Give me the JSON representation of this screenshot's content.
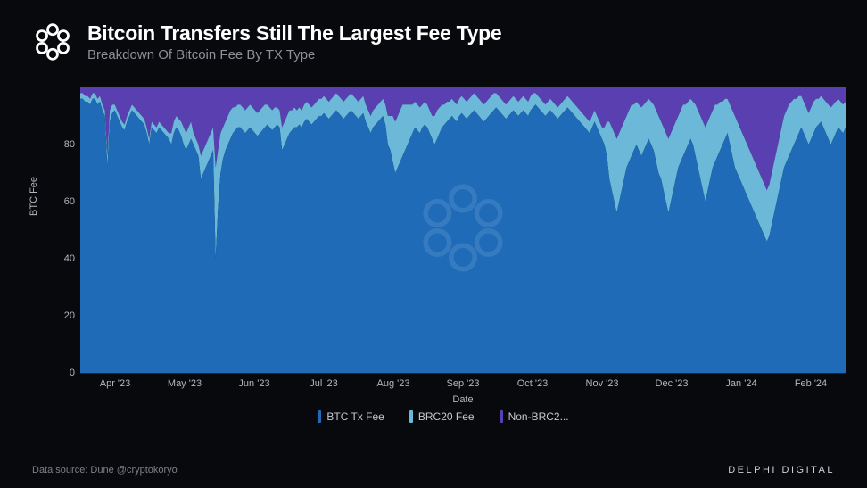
{
  "header": {
    "title": "Bitcoin Transfers Still The Largest Fee Type",
    "subtitle": "Breakdown Of Bitcoin Fee By TX Type"
  },
  "footer": {
    "source": "Data source: Dune @cryptokoryo",
    "brand": "DELPHI DIGITAL"
  },
  "chart": {
    "type": "stacked-area",
    "background_color": "#08090c",
    "grid_color": "#222328",
    "axis_text_color": "#b5b7bf",
    "y_axis": {
      "label": "BTC Fee",
      "min": 0,
      "max": 100,
      "ticks": [
        0,
        20,
        40,
        60,
        80
      ]
    },
    "x_axis": {
      "label": "Date",
      "ticks": [
        "Apr '23",
        "May '23",
        "Jun '23",
        "Jul '23",
        "Aug '23",
        "Sep '23",
        "Oct '23",
        "Nov '23",
        "Dec '23",
        "Jan '24",
        "Feb '24"
      ]
    },
    "series": [
      {
        "name": "BTC Tx Fee",
        "color": "#1f6bb8"
      },
      {
        "name": "BRC20 Fee",
        "color": "#6bb8d9"
      },
      {
        "name": "Non-BRC2...",
        "color": "#5a3fb0"
      }
    ],
    "legend": {
      "items": [
        {
          "label": "BTC Tx Fee",
          "color": "#1f6bb8"
        },
        {
          "label": "BRC20 Fee",
          "color": "#6bb8d9"
        },
        {
          "label": "Non-BRC2...",
          "color": "#5a3fb0"
        }
      ]
    },
    "data": {
      "note": "btc values are the BTC Tx Fee share (%); brc20 values are cumulative top of BTC+BRC20 (%); total is 100 for all points. Non-BRC20 fills 100 down to brc20.",
      "btc": [
        96,
        96,
        95,
        95,
        94,
        96,
        96,
        94,
        95,
        92,
        90,
        72,
        88,
        91,
        92,
        90,
        88,
        86,
        85,
        88,
        90,
        92,
        91,
        90,
        89,
        88,
        87,
        84,
        80,
        86,
        85,
        84,
        86,
        85,
        84,
        83,
        82,
        80,
        84,
        86,
        85,
        83,
        80,
        78,
        80,
        82,
        80,
        78,
        76,
        68,
        70,
        72,
        74,
        76,
        78,
        40,
        58,
        70,
        75,
        78,
        80,
        82,
        84,
        85,
        86,
        86,
        85,
        84,
        85,
        86,
        85,
        84,
        83,
        84,
        85,
        86,
        87,
        86,
        85,
        86,
        87,
        86,
        78,
        80,
        82,
        84,
        85,
        86,
        86,
        87,
        86,
        88,
        89,
        88,
        87,
        88,
        89,
        90,
        90,
        91,
        90,
        89,
        90,
        91,
        92,
        91,
        90,
        89,
        90,
        91,
        92,
        91,
        90,
        89,
        90,
        91,
        88,
        86,
        84,
        86,
        87,
        88,
        89,
        90,
        87,
        80,
        78,
        74,
        70,
        72,
        74,
        76,
        78,
        80,
        82,
        84,
        86,
        85,
        84,
        86,
        87,
        86,
        84,
        82,
        80,
        82,
        84,
        86,
        87,
        88,
        89,
        90,
        89,
        88,
        90,
        91,
        90,
        89,
        90,
        91,
        92,
        91,
        90,
        89,
        88,
        89,
        90,
        91,
        92,
        93,
        92,
        91,
        90,
        89,
        90,
        91,
        92,
        91,
        90,
        91,
        92,
        91,
        90,
        92,
        93,
        94,
        93,
        92,
        91,
        90,
        91,
        92,
        91,
        90,
        89,
        90,
        91,
        92,
        93,
        92,
        91,
        90,
        89,
        88,
        87,
        86,
        85,
        84,
        86,
        88,
        86,
        84,
        82,
        80,
        76,
        68,
        64,
        60,
        56,
        60,
        64,
        68,
        72,
        74,
        76,
        78,
        80,
        78,
        76,
        78,
        80,
        82,
        80,
        78,
        74,
        70,
        68,
        64,
        60,
        56,
        60,
        64,
        68,
        72,
        74,
        76,
        78,
        80,
        82,
        80,
        76,
        72,
        68,
        64,
        60,
        64,
        68,
        72,
        74,
        76,
        78,
        80,
        82,
        84,
        80,
        76,
        72,
        70,
        68,
        66,
        64,
        62,
        60,
        58,
        56,
        54,
        52,
        50,
        48,
        46,
        48,
        52,
        56,
        60,
        64,
        68,
        72,
        74,
        76,
        78,
        80,
        82,
        84,
        86,
        84,
        82,
        80,
        82,
        84,
        86,
        87,
        88,
        86,
        84,
        82,
        80,
        82,
        84,
        86,
        85,
        84,
        86
      ],
      "brc20": [
        98,
        98,
        97,
        97,
        96,
        98,
        98,
        96,
        97,
        94,
        92,
        76,
        92,
        94,
        94,
        92,
        90,
        88,
        87,
        90,
        92,
        94,
        93,
        92,
        91,
        90,
        89,
        86,
        82,
        88,
        87,
        86,
        88,
        87,
        86,
        85,
        84,
        84,
        88,
        90,
        89,
        88,
        86,
        84,
        86,
        88,
        84,
        82,
        80,
        76,
        78,
        80,
        82,
        84,
        86,
        72,
        78,
        84,
        86,
        88,
        90,
        92,
        93,
        93,
        94,
        94,
        93,
        92,
        93,
        94,
        93,
        92,
        91,
        92,
        93,
        94,
        94,
        93,
        92,
        93,
        93,
        92,
        86,
        88,
        90,
        92,
        92,
        93,
        92,
        93,
        92,
        94,
        95,
        94,
        93,
        94,
        95,
        96,
        96,
        97,
        96,
        95,
        96,
        97,
        98,
        97,
        96,
        95,
        96,
        97,
        98,
        97,
        96,
        95,
        96,
        97,
        94,
        92,
        90,
        92,
        93,
        94,
        95,
        96,
        94,
        90,
        90,
        90,
        88,
        90,
        92,
        94,
        94,
        94,
        94,
        94,
        95,
        94,
        93,
        94,
        95,
        94,
        92,
        90,
        90,
        92,
        93,
        94,
        94,
        95,
        95,
        96,
        95,
        94,
        96,
        97,
        96,
        95,
        96,
        97,
        98,
        97,
        96,
        95,
        94,
        95,
        96,
        97,
        98,
        98,
        97,
        96,
        95,
        94,
        95,
        96,
        97,
        96,
        95,
        96,
        97,
        96,
        95,
        97,
        98,
        98,
        97,
        96,
        95,
        94,
        95,
        96,
        95,
        94,
        93,
        94,
        95,
        96,
        97,
        96,
        95,
        94,
        93,
        92,
        91,
        90,
        89,
        88,
        90,
        92,
        90,
        88,
        86,
        86,
        88,
        88,
        86,
        84,
        82,
        84,
        86,
        88,
        90,
        92,
        94,
        94,
        95,
        94,
        93,
        94,
        95,
        96,
        95,
        94,
        92,
        90,
        88,
        86,
        84,
        82,
        84,
        86,
        88,
        90,
        92,
        94,
        94,
        95,
        96,
        95,
        94,
        92,
        90,
        88,
        86,
        88,
        90,
        92,
        94,
        94,
        95,
        95,
        96,
        96,
        94,
        92,
        90,
        88,
        86,
        84,
        82,
        80,
        78,
        76,
        74,
        72,
        70,
        68,
        66,
        64,
        66,
        70,
        74,
        78,
        82,
        86,
        90,
        92,
        94,
        95,
        96,
        96,
        97,
        97,
        95,
        93,
        91,
        93,
        95,
        96,
        96,
        97,
        96,
        95,
        94,
        93,
        94,
        95,
        96,
        95,
        94,
        95
      ]
    }
  }
}
